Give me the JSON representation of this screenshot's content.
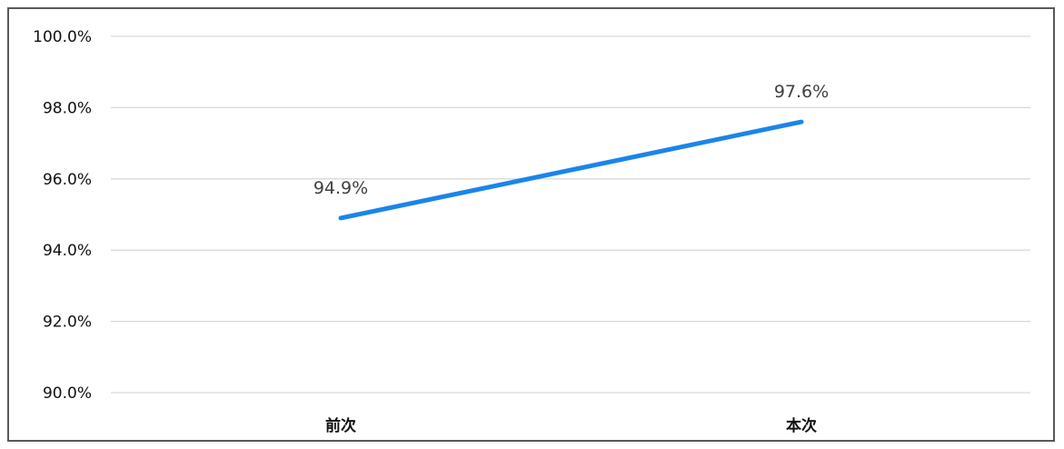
{
  "chart_data": {
    "type": "line",
    "categories": [
      "前次",
      "本次"
    ],
    "series": [
      {
        "values": [
          94.9,
          97.6
        ],
        "labels": [
          "94.9%",
          "97.6%"
        ],
        "color": "#1a85ea"
      }
    ],
    "y_ticks": [
      "100.0%",
      "98.0%",
      "96.0%",
      "94.0%",
      "92.0%",
      "90.0%"
    ],
    "ylim": [
      90,
      100
    ],
    "grid": true
  }
}
